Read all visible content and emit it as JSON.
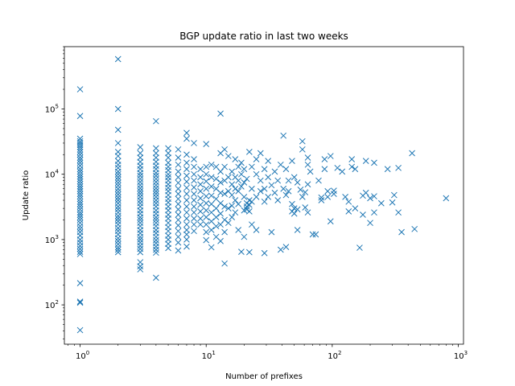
{
  "chart_data": {
    "type": "scatter",
    "title": "BGP update ratio in last two weeks",
    "xlabel": "Number of prefixes",
    "ylabel": "Update ratio",
    "xscale": "log",
    "yscale": "log",
    "xlim": [
      0.75,
      1100
    ],
    "ylim": [
      25,
      900000
    ],
    "xticks": [
      {
        "base": "10",
        "exp": "0",
        "value": 1
      },
      {
        "base": "10",
        "exp": "1",
        "value": 10
      },
      {
        "base": "10",
        "exp": "2",
        "value": 100
      },
      {
        "base": "10",
        "exp": "3",
        "value": 1000
      }
    ],
    "yticks": [
      {
        "base": "10",
        "exp": "2",
        "value": 100
      },
      {
        "base": "10",
        "exp": "3",
        "value": 1000
      },
      {
        "base": "10",
        "exp": "4",
        "value": 10000
      },
      {
        "base": "10",
        "exp": "5",
        "value": 100000
      }
    ],
    "marker": "x",
    "color": "#1f77b4",
    "grid": false,
    "legend": "none",
    "points": [
      [
        1,
        200000
      ],
      [
        1,
        78000
      ],
      [
        1,
        35000
      ],
      [
        1,
        32000
      ],
      [
        1,
        30000
      ],
      [
        1,
        28000
      ],
      [
        1,
        26000
      ],
      [
        1,
        24000
      ],
      [
        1,
        22000
      ],
      [
        1,
        20000
      ],
      [
        1,
        18000
      ],
      [
        1,
        16500
      ],
      [
        1,
        15000
      ],
      [
        1,
        13500
      ],
      [
        1,
        12000
      ],
      [
        1,
        11000
      ],
      [
        1,
        10000
      ],
      [
        1,
        9200
      ],
      [
        1,
        8500
      ],
      [
        1,
        7800
      ],
      [
        1,
        7100
      ],
      [
        1,
        6500
      ],
      [
        1,
        6000
      ],
      [
        1,
        5500
      ],
      [
        1,
        5000
      ],
      [
        1,
        4600
      ],
      [
        1,
        4200
      ],
      [
        1,
        3800
      ],
      [
        1,
        3500
      ],
      [
        1,
        3200
      ],
      [
        1,
        2900
      ],
      [
        1,
        2600
      ],
      [
        1,
        2400
      ],
      [
        1,
        2200
      ],
      [
        1,
        2000
      ],
      [
        1,
        1800
      ],
      [
        1,
        1600
      ],
      [
        1,
        1450
      ],
      [
        1,
        1300
      ],
      [
        1,
        1150
      ],
      [
        1,
        1000
      ],
      [
        1,
        900
      ],
      [
        1,
        800
      ],
      [
        1,
        720
      ],
      [
        1,
        650
      ],
      [
        1,
        600
      ],
      [
        1,
        215
      ],
      [
        1,
        112
      ],
      [
        1,
        108
      ],
      [
        1,
        41
      ],
      [
        2,
        580000
      ],
      [
        2,
        100000
      ],
      [
        2,
        48000
      ],
      [
        2,
        30000
      ],
      [
        2,
        22000
      ],
      [
        2,
        19000
      ],
      [
        2,
        16000
      ],
      [
        2,
        14000
      ],
      [
        2,
        12500
      ],
      [
        2,
        11000
      ],
      [
        2,
        10000
      ],
      [
        2,
        9000
      ],
      [
        2,
        8200
      ],
      [
        2,
        7400
      ],
      [
        2,
        6700
      ],
      [
        2,
        6000
      ],
      [
        2,
        5400
      ],
      [
        2,
        4900
      ],
      [
        2,
        4400
      ],
      [
        2,
        4000
      ],
      [
        2,
        3600
      ],
      [
        2,
        3200
      ],
      [
        2,
        2900
      ],
      [
        2,
        2600
      ],
      [
        2,
        2300
      ],
      [
        2,
        2100
      ],
      [
        2,
        1900
      ],
      [
        2,
        1700
      ],
      [
        2,
        1500
      ],
      [
        2,
        1350
      ],
      [
        2,
        1200
      ],
      [
        2,
        1050
      ],
      [
        2,
        950
      ],
      [
        2,
        850
      ],
      [
        2,
        760
      ],
      [
        2,
        700
      ],
      [
        2,
        640
      ],
      [
        3,
        26000
      ],
      [
        3,
        21000
      ],
      [
        3,
        18000
      ],
      [
        3,
        15500
      ],
      [
        3,
        13500
      ],
      [
        3,
        12000
      ],
      [
        3,
        10500
      ],
      [
        3,
        9500
      ],
      [
        3,
        8500
      ],
      [
        3,
        7600
      ],
      [
        3,
        6800
      ],
      [
        3,
        6100
      ],
      [
        3,
        5500
      ],
      [
        3,
        5000
      ],
      [
        3,
        4500
      ],
      [
        3,
        4000
      ],
      [
        3,
        3600
      ],
      [
        3,
        3200
      ],
      [
        3,
        2800
      ],
      [
        3,
        2500
      ],
      [
        3,
        2200
      ],
      [
        3,
        2000
      ],
      [
        3,
        1800
      ],
      [
        3,
        1600
      ],
      [
        3,
        1400
      ],
      [
        3,
        1250
      ],
      [
        3,
        1100
      ],
      [
        3,
        1000
      ],
      [
        3,
        900
      ],
      [
        3,
        800
      ],
      [
        3,
        720
      ],
      [
        3,
        640
      ],
      [
        3,
        450
      ],
      [
        3,
        390
      ],
      [
        3,
        350
      ],
      [
        4,
        65000
      ],
      [
        4,
        25000
      ],
      [
        4,
        21000
      ],
      [
        4,
        18000
      ],
      [
        4,
        15500
      ],
      [
        4,
        13500
      ],
      [
        4,
        12000
      ],
      [
        4,
        10500
      ],
      [
        4,
        9500
      ],
      [
        4,
        8500
      ],
      [
        4,
        7600
      ],
      [
        4,
        6800
      ],
      [
        4,
        6100
      ],
      [
        4,
        5500
      ],
      [
        4,
        5000
      ],
      [
        4,
        4500
      ],
      [
        4,
        4000
      ],
      [
        4,
        3600
      ],
      [
        4,
        3200
      ],
      [
        4,
        2800
      ],
      [
        4,
        2500
      ],
      [
        4,
        2200
      ],
      [
        4,
        2000
      ],
      [
        4,
        1800
      ],
      [
        4,
        1600
      ],
      [
        4,
        1400
      ],
      [
        4,
        1250
      ],
      [
        4,
        1100
      ],
      [
        4,
        980
      ],
      [
        4,
        880
      ],
      [
        4,
        780
      ],
      [
        4,
        700
      ],
      [
        4,
        630
      ],
      [
        4,
        260
      ],
      [
        5,
        25000
      ],
      [
        5,
        21000
      ],
      [
        5,
        18000
      ],
      [
        5,
        15000
      ],
      [
        5,
        13000
      ],
      [
        5,
        11500
      ],
      [
        5,
        10000
      ],
      [
        5,
        9000
      ],
      [
        5,
        8000
      ],
      [
        5,
        7000
      ],
      [
        5,
        6200
      ],
      [
        5,
        5500
      ],
      [
        5,
        4800
      ],
      [
        5,
        4200
      ],
      [
        5,
        3700
      ],
      [
        5,
        3200
      ],
      [
        5,
        2800
      ],
      [
        5,
        2400
      ],
      [
        5,
        2100
      ],
      [
        5,
        1800
      ],
      [
        5,
        1550
      ],
      [
        5,
        1350
      ],
      [
        5,
        1150
      ],
      [
        5,
        1000
      ],
      [
        5,
        860
      ],
      [
        5,
        740
      ],
      [
        6,
        24000
      ],
      [
        6,
        18000
      ],
      [
        6,
        14000
      ],
      [
        6,
        11000
      ],
      [
        6,
        9000
      ],
      [
        6,
        7400
      ],
      [
        6,
        6000
      ],
      [
        6,
        5000
      ],
      [
        6,
        4200
      ],
      [
        6,
        3500
      ],
      [
        6,
        2900
      ],
      [
        6,
        2400
      ],
      [
        6,
        2000
      ],
      [
        6,
        1650
      ],
      [
        6,
        1350
      ],
      [
        6,
        1100
      ],
      [
        6,
        900
      ],
      [
        6,
        680
      ],
      [
        7,
        43000
      ],
      [
        7,
        35000
      ],
      [
        7,
        20000
      ],
      [
        7,
        15000
      ],
      [
        7,
        12000
      ],
      [
        7,
        9500
      ],
      [
        7,
        7700
      ],
      [
        7,
        6200
      ],
      [
        7,
        5000
      ],
      [
        7,
        4000
      ],
      [
        7,
        3200
      ],
      [
        7,
        2600
      ],
      [
        7,
        2100
      ],
      [
        7,
        1700
      ],
      [
        7,
        1400
      ],
      [
        7,
        1200
      ],
      [
        7,
        1000
      ],
      [
        7,
        780
      ],
      [
        8,
        30000
      ],
      [
        8,
        17000
      ],
      [
        8,
        13000
      ],
      [
        8,
        10000
      ],
      [
        8,
        8000
      ],
      [
        8,
        6300
      ],
      [
        8,
        5000
      ],
      [
        8,
        4000
      ],
      [
        8,
        3200
      ],
      [
        8,
        2600
      ],
      [
        8,
        2100
      ],
      [
        8,
        1700
      ],
      [
        8,
        1350
      ],
      [
        9,
        12000
      ],
      [
        9,
        9000
      ],
      [
        9,
        7000
      ],
      [
        9,
        5500
      ],
      [
        9,
        4300
      ],
      [
        9,
        3400
      ],
      [
        9,
        2700
      ],
      [
        9,
        2100
      ],
      [
        9,
        1700
      ],
      [
        10,
        29000
      ],
      [
        10,
        13000
      ],
      [
        10,
        10000
      ],
      [
        10,
        7800
      ],
      [
        10,
        6000
      ],
      [
        10,
        4600
      ],
      [
        10,
        3600
      ],
      [
        10,
        2800
      ],
      [
        10,
        2200
      ],
      [
        10,
        1700
      ],
      [
        10,
        1300
      ],
      [
        10,
        980
      ],
      [
        11,
        14000
      ],
      [
        11,
        9000
      ],
      [
        11,
        6500
      ],
      [
        11,
        4700
      ],
      [
        11,
        3500
      ],
      [
        11,
        2600
      ],
      [
        11,
        1900
      ],
      [
        11,
        1400
      ],
      [
        11,
        760
      ],
      [
        12,
        13000
      ],
      [
        12,
        8500
      ],
      [
        12,
        6000
      ],
      [
        12,
        4200
      ],
      [
        12,
        3000
      ],
      [
        12,
        2200
      ],
      [
        12,
        1600
      ],
      [
        12,
        1100
      ],
      [
        13,
        85000
      ],
      [
        13,
        21000
      ],
      [
        13,
        11000
      ],
      [
        13,
        7500
      ],
      [
        13,
        5200
      ],
      [
        13,
        3600
      ],
      [
        13,
        2500
      ],
      [
        13,
        1700
      ],
      [
        13,
        950
      ],
      [
        14,
        24000
      ],
      [
        14,
        13000
      ],
      [
        14,
        8000
      ],
      [
        14,
        5000
      ],
      [
        14,
        3200
      ],
      [
        14,
        2000
      ],
      [
        14,
        1300
      ],
      [
        14,
        430
      ],
      [
        15,
        19000
      ],
      [
        15,
        9000
      ],
      [
        15,
        5500
      ],
      [
        15,
        3000
      ],
      [
        15,
        1800
      ],
      [
        16,
        11000
      ],
      [
        16,
        7000
      ],
      [
        16,
        4800
      ],
      [
        16,
        3300
      ],
      [
        16,
        2200
      ],
      [
        17,
        17000
      ],
      [
        17,
        9000
      ],
      [
        17,
        6000
      ],
      [
        17,
        4000
      ],
      [
        17,
        2600
      ],
      [
        18,
        13000
      ],
      [
        18,
        8000
      ],
      [
        18,
        5500
      ],
      [
        18,
        3500
      ],
      [
        18,
        1400
      ],
      [
        19,
        15000
      ],
      [
        19,
        10000
      ],
      [
        19,
        6500
      ],
      [
        19,
        650
      ],
      [
        20,
        12000
      ],
      [
        20,
        7500
      ],
      [
        20,
        4500
      ],
      [
        20,
        2800
      ],
      [
        20,
        1100
      ],
      [
        21,
        8500
      ],
      [
        21,
        3600
      ],
      [
        21,
        3200
      ],
      [
        21,
        2900
      ],
      [
        22,
        22000
      ],
      [
        22,
        4000
      ],
      [
        22,
        3400
      ],
      [
        22,
        2700
      ],
      [
        22,
        640
      ],
      [
        23,
        13000
      ],
      [
        23,
        6000
      ],
      [
        23,
        3800
      ],
      [
        23,
        1700
      ],
      [
        25,
        17000
      ],
      [
        25,
        10000
      ],
      [
        25,
        4500
      ],
      [
        25,
        1400
      ],
      [
        27,
        21000
      ],
      [
        27,
        8000
      ],
      [
        27,
        5500
      ],
      [
        29,
        12000
      ],
      [
        29,
        6000
      ],
      [
        29,
        3800
      ],
      [
        29,
        620
      ],
      [
        31,
        16000
      ],
      [
        31,
        9000
      ],
      [
        31,
        4500
      ],
      [
        33,
        6800
      ],
      [
        33,
        1300
      ],
      [
        35,
        11000
      ],
      [
        35,
        5200
      ],
      [
        37,
        8000
      ],
      [
        37,
        4000
      ],
      [
        39,
        14000
      ],
      [
        39,
        700
      ],
      [
        41,
        39000
      ],
      [
        41,
        6000
      ],
      [
        43,
        12000
      ],
      [
        43,
        4800
      ],
      [
        43,
        770
      ],
      [
        45,
        8000
      ],
      [
        45,
        5500
      ],
      [
        48,
        16000
      ],
      [
        48,
        3500
      ],
      [
        48,
        2700
      ],
      [
        50,
        9000
      ],
      [
        50,
        3000
      ],
      [
        50,
        2500
      ],
      [
        53,
        7500
      ],
      [
        53,
        2900
      ],
      [
        53,
        1400
      ],
      [
        56,
        5800
      ],
      [
        58,
        32000
      ],
      [
        58,
        24000
      ],
      [
        58,
        4500
      ],
      [
        61,
        5300
      ],
      [
        61,
        3100
      ],
      [
        64,
        18000
      ],
      [
        64,
        14000
      ],
      [
        64,
        7000
      ],
      [
        64,
        2600
      ],
      [
        67,
        11000
      ],
      [
        70,
        1200
      ],
      [
        74,
        1200
      ],
      [
        78,
        8000
      ],
      [
        82,
        4000
      ],
      [
        82,
        4400
      ],
      [
        87,
        17000
      ],
      [
        87,
        12000
      ],
      [
        92,
        5500
      ],
      [
        92,
        4500
      ],
      [
        97,
        19000
      ],
      [
        97,
        1900
      ],
      [
        103,
        5000
      ],
      [
        103,
        5600
      ],
      [
        110,
        12500
      ],
      [
        120,
        11000
      ],
      [
        127,
        4500
      ],
      [
        135,
        3800
      ],
      [
        135,
        2700
      ],
      [
        143,
        17000
      ],
      [
        143,
        13000
      ],
      [
        152,
        3000
      ],
      [
        152,
        12000
      ],
      [
        165,
        750
      ],
      [
        175,
        2400
      ],
      [
        175,
        4700
      ],
      [
        185,
        16000
      ],
      [
        185,
        5200
      ],
      [
        200,
        4300
      ],
      [
        200,
        1800
      ],
      [
        215,
        15000
      ],
      [
        215,
        2600
      ],
      [
        215,
        4600
      ],
      [
        245,
        3600
      ],
      [
        275,
        12000
      ],
      [
        300,
        3700
      ],
      [
        310,
        4800
      ],
      [
        335,
        2600
      ],
      [
        335,
        12500
      ],
      [
        355,
        1300
      ],
      [
        430,
        21000
      ],
      [
        450,
        1450
      ],
      [
        800,
        4300
      ]
    ]
  }
}
